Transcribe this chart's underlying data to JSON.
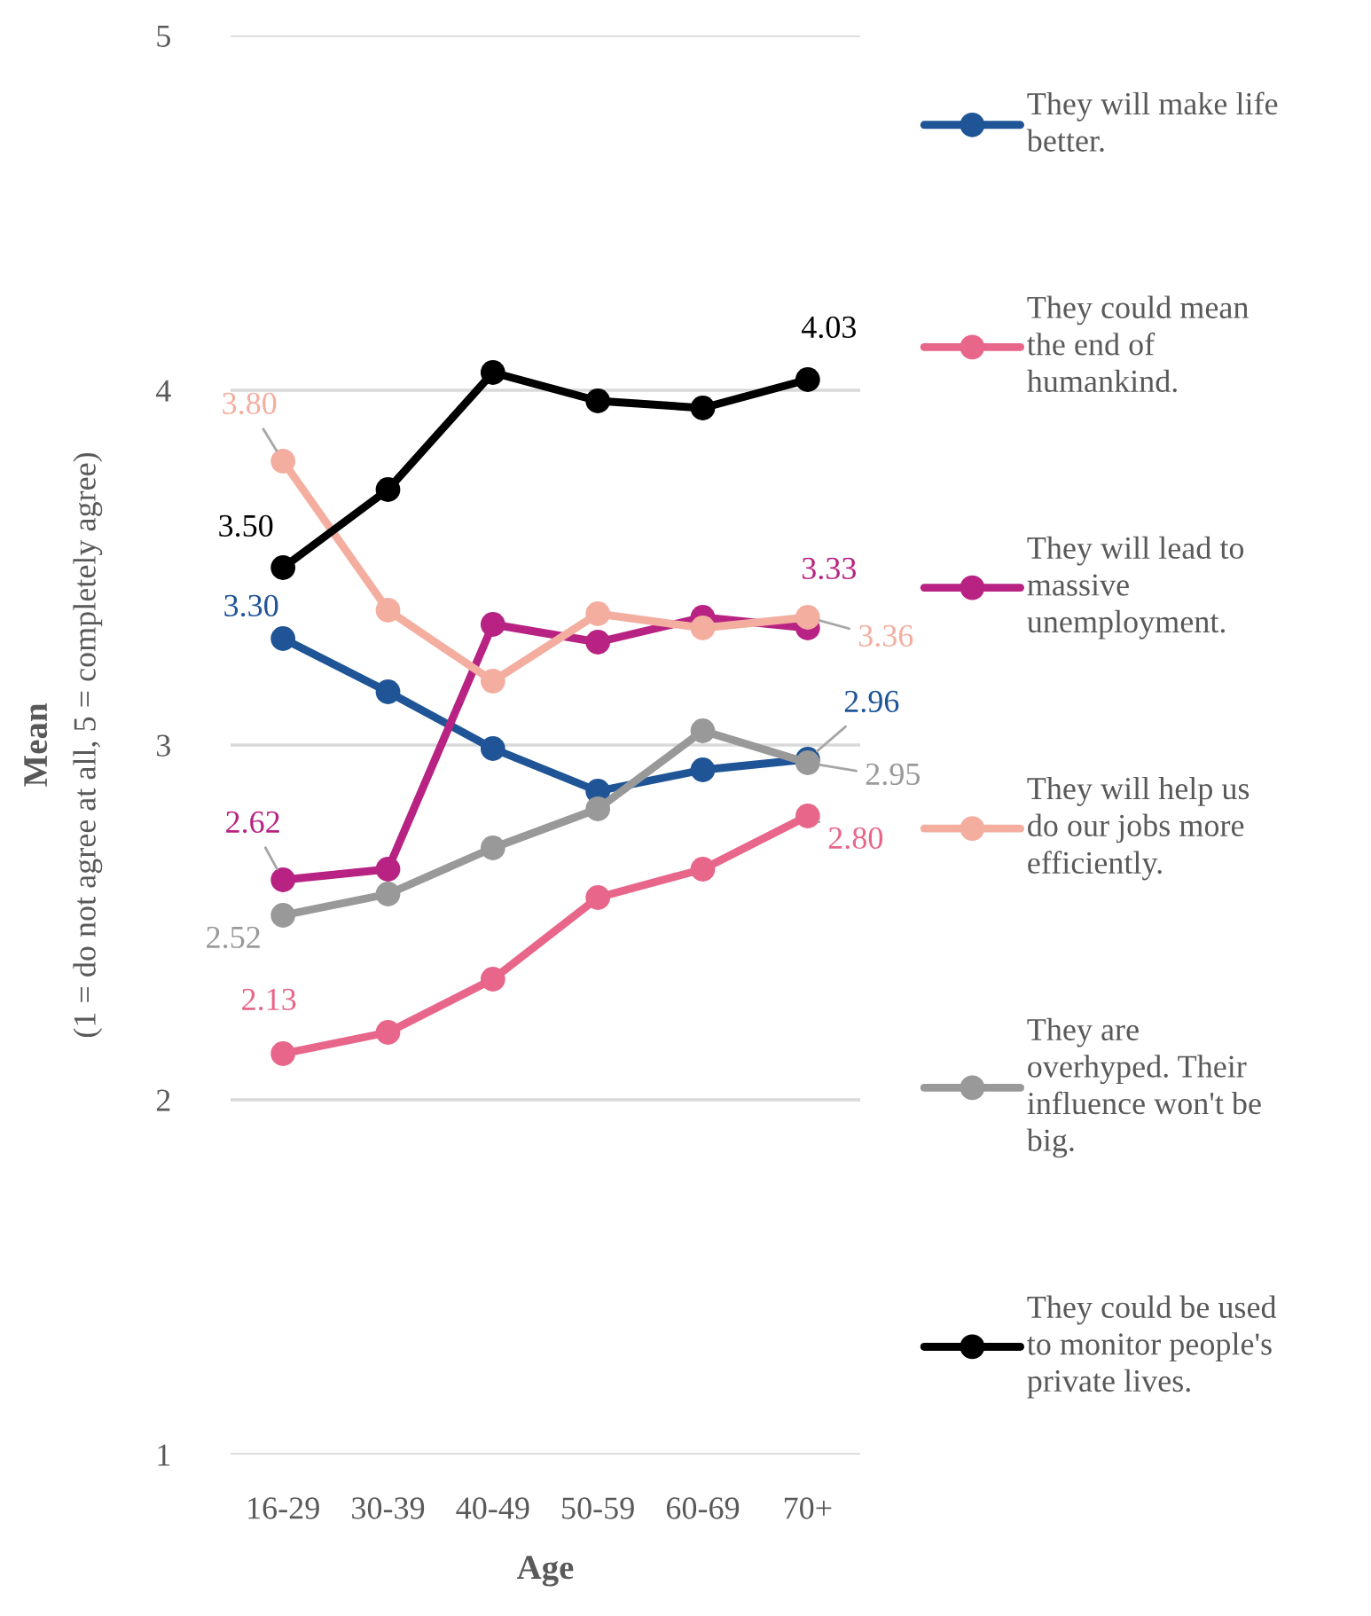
{
  "chart_data": {
    "type": "line",
    "xlabel": "Age",
    "ylabel": "Mean\n(1 = do not agree at all, 5 = completely agree)",
    "categories": [
      "16-29",
      "30-39",
      "40-49",
      "50-59",
      "60-69",
      "70+"
    ],
    "ylim": [
      1,
      5
    ],
    "yticks": [
      1,
      2,
      3,
      4,
      5
    ],
    "grid": "y",
    "legend": "right",
    "marker": "circle",
    "line_style": "solid",
    "series": [
      {
        "name": "They will make life better.",
        "color": "#1f5596",
        "values": [
          3.3,
          3.15,
          2.99,
          2.87,
          2.93,
          2.96
        ],
        "value_labels": [
          "3.30",
          null,
          null,
          null,
          null,
          "2.96"
        ]
      },
      {
        "name": "They could mean the end of humankind.",
        "color": "#e8668a",
        "values": [
          2.13,
          2.19,
          2.34,
          2.57,
          2.65,
          2.8
        ],
        "value_labels": [
          "2.13",
          null,
          null,
          null,
          null,
          "2.80"
        ]
      },
      {
        "name": "They will lead to massive unemployment.",
        "color": "#b82383",
        "values": [
          2.62,
          2.65,
          3.34,
          3.29,
          3.36,
          3.33
        ],
        "value_labels": [
          "2.62",
          null,
          null,
          null,
          null,
          "3.33"
        ]
      },
      {
        "name": "They will help us do our jobs more efficiently.",
        "color": "#f4aea0",
        "values": [
          3.8,
          3.38,
          3.18,
          3.37,
          3.33,
          3.36
        ],
        "value_labels": [
          "3.80",
          null,
          null,
          null,
          null,
          "3.36"
        ]
      },
      {
        "name": "They are overhyped. Their influence won't be big.",
        "color": "#999999",
        "values": [
          2.52,
          2.58,
          2.71,
          2.82,
          3.04,
          2.95
        ],
        "value_labels": [
          "2.52",
          null,
          null,
          null,
          null,
          "2.95"
        ]
      },
      {
        "name": "They could be used to monitor people's private lives.",
        "color": "#000000",
        "values": [
          3.5,
          3.72,
          4.05,
          3.97,
          3.95,
          4.03
        ],
        "value_labels": [
          "3.50",
          null,
          null,
          null,
          null,
          "4.03"
        ]
      }
    ]
  }
}
